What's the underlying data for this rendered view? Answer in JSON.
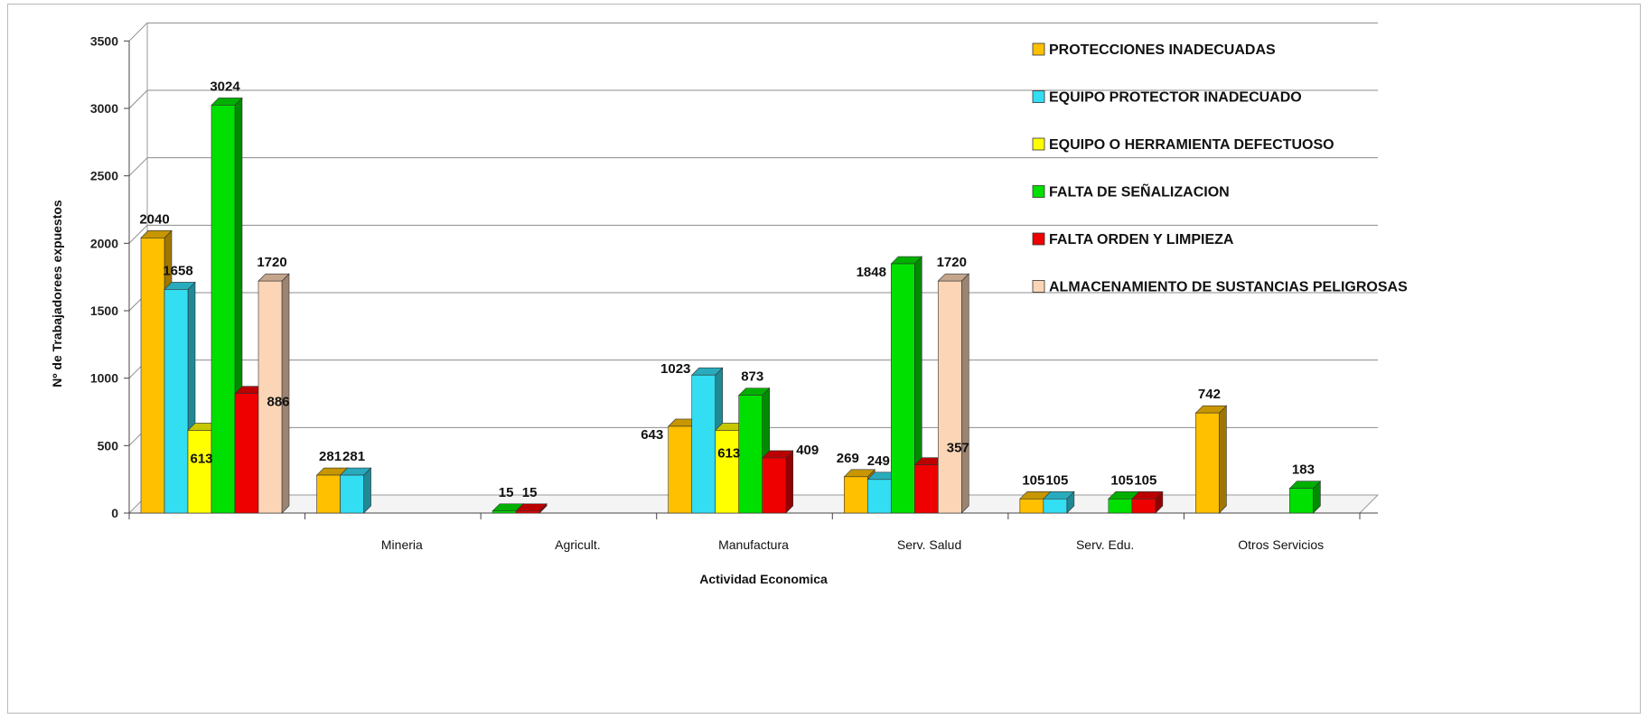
{
  "chart_data": {
    "type": "bar",
    "title": "",
    "xlabel": "Actividad Economica",
    "ylabel": "Nº de Trabajadorees  expuestos",
    "ylim": [
      0,
      3500
    ],
    "yticks": [
      0,
      500,
      1000,
      1500,
      2000,
      2500,
      3000,
      3500
    ],
    "grid": true,
    "legend_position": "top-right",
    "categories": [
      "",
      "Mineria",
      "Agricult.",
      "Manufactura",
      "Serv. Salud",
      "Serv. Edu.",
      "Otros Servicios"
    ],
    "series": [
      {
        "name": "PROTECCIONES INADECUADAS",
        "color": "#FFC000",
        "values": [
          2040,
          281,
          null,
          643,
          269,
          105,
          742
        ]
      },
      {
        "name": "EQUIPO PROTECTOR INADECUADO",
        "color": "#33DDF2",
        "values": [
          1658,
          281,
          null,
          1023,
          249,
          105,
          null
        ]
      },
      {
        "name": "EQUIPO O HERRAMIENTA DEFECTUOSO",
        "color": "#FFFF00",
        "values": [
          613,
          null,
          null,
          613,
          null,
          null,
          null
        ]
      },
      {
        "name": "FALTA DE SEÑALIZACION",
        "color": "#00E000",
        "values": [
          3024,
          null,
          15,
          873,
          1848,
          105,
          183
        ]
      },
      {
        "name": "FALTA ORDEN Y LIMPIEZA",
        "color": "#EE0000",
        "values": [
          886,
          null,
          15,
          409,
          357,
          105,
          null
        ]
      },
      {
        "name": "ALMACENAMIENTO DE SUSTANCIAS PELIGROSAS",
        "color": "#FBD5B5",
        "values": [
          1720,
          null,
          null,
          null,
          1720,
          null,
          null
        ]
      }
    ]
  }
}
